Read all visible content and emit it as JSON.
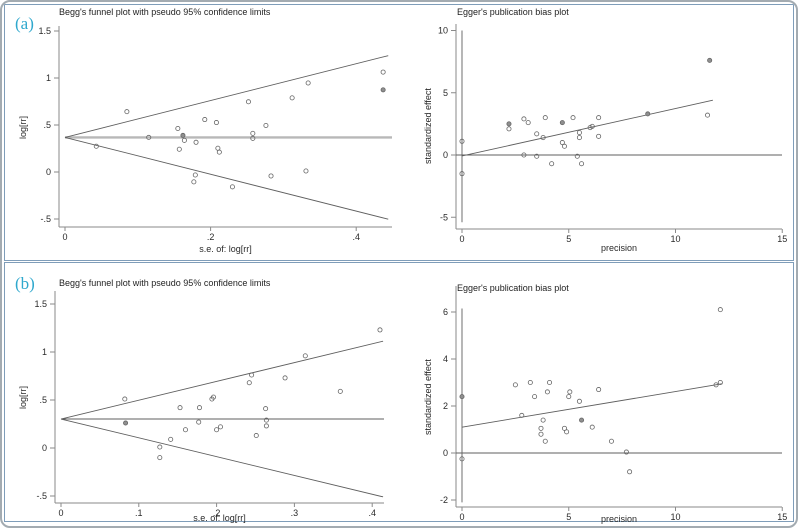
{
  "figure": {
    "panel_a_label": "(a)",
    "panel_b_label": "(b)",
    "accent_color": "#2fa8cd",
    "panel_border_color": "#7f9db9",
    "outer_border_color": "#a3abb1"
  },
  "chart_data": [
    {
      "id": "funnel_a",
      "panel": "a",
      "type": "scatter",
      "title": "Begg's funnel plot with pseudo 95% confidence limits",
      "xlabel": "s.e. of: log[rr]",
      "ylabel": "log[rr]",
      "xlim": [
        0,
        0.46
      ],
      "ylim": [
        -0.6,
        1.6
      ],
      "grid": false,
      "xticks": [
        {
          "v": 0,
          "l": "0"
        },
        {
          "v": 0.2,
          "l": ".2"
        },
        {
          "v": 0.4,
          "l": ".4"
        }
      ],
      "yticks": [
        {
          "v": -0.5,
          "l": "-.5"
        },
        {
          "v": 0,
          "l": "0"
        },
        {
          "v": 0.5,
          "l": ".5"
        },
        {
          "v": 1,
          "l": "1"
        },
        {
          "v": 1.5,
          "l": "1.5"
        }
      ],
      "pooled_effect": 0.368,
      "funnel": {
        "apex_x": 0,
        "apex_y": 0.368,
        "end_x": 0.444,
        "upper_end_y": 1.238,
        "lower_end_y": -0.502
      },
      "points": [
        [
          0.043,
          0.274
        ],
        [
          0.085,
          0.642
        ],
        [
          0.115,
          0.368
        ],
        [
          0.155,
          0.463
        ],
        [
          0.157,
          0.242
        ],
        [
          0.162,
          0.389,
          1
        ],
        [
          0.164,
          0.337
        ],
        [
          0.18,
          0.316
        ],
        [
          0.192,
          0.558
        ],
        [
          0.179,
          -0.032
        ],
        [
          0.177,
          -0.105
        ],
        [
          0.208,
          0.526
        ],
        [
          0.21,
          0.253
        ],
        [
          0.212,
          0.211
        ],
        [
          0.23,
          -0.158
        ],
        [
          0.252,
          0.747
        ],
        [
          0.258,
          0.411
        ],
        [
          0.258,
          0.358
        ],
        [
          0.276,
          0.495
        ],
        [
          0.283,
          -0.042
        ],
        [
          0.312,
          0.789
        ],
        [
          0.331,
          0.011
        ],
        [
          0.334,
          0.947
        ],
        [
          0.437,
          1.063
        ],
        [
          0.437,
          0.874,
          1
        ]
      ]
    },
    {
      "id": "egger_a",
      "panel": "a",
      "type": "scatter",
      "title": "Egger's publication bias plot",
      "xlabel": "precision",
      "ylabel": "standardized effect",
      "xlim": [
        0,
        15
      ],
      "ylim": [
        -5.5,
        10.5
      ],
      "grid": false,
      "xticks": [
        {
          "v": 0,
          "l": "0"
        },
        {
          "v": 5,
          "l": "5"
        },
        {
          "v": 10,
          "l": "10"
        },
        {
          "v": 15,
          "l": "15"
        }
      ],
      "yticks": [
        {
          "v": -5,
          "l": "-5"
        },
        {
          "v": 0,
          "l": "0"
        },
        {
          "v": 5,
          "l": "5"
        },
        {
          "v": 10,
          "l": "10"
        }
      ],
      "zero_href_y": 0,
      "zero_vref_x": 0,
      "vref_span": [
        -5.4,
        10.0
      ],
      "regression": {
        "x1": 0,
        "y1": -0.08,
        "x2": 11.75,
        "y2": 4.4
      },
      "points": [
        [
          0,
          1.1
        ],
        [
          0,
          -1.5
        ],
        [
          2.2,
          2.5,
          1
        ],
        [
          2.2,
          2.1
        ],
        [
          2.9,
          2.9
        ],
        [
          3.1,
          2.6
        ],
        [
          2.9,
          0.0
        ],
        [
          3.5,
          1.7
        ],
        [
          3.5,
          -0.1
        ],
        [
          3.9,
          3.0
        ],
        [
          3.8,
          1.4
        ],
        [
          4.2,
          -0.7
        ],
        [
          4.7,
          2.6,
          1
        ],
        [
          4.7,
          1.0
        ],
        [
          4.8,
          0.7
        ],
        [
          5.2,
          3.0
        ],
        [
          5.5,
          1.8
        ],
        [
          5.5,
          1.4
        ],
        [
          5.4,
          -0.1
        ],
        [
          5.6,
          -0.7
        ],
        [
          6.0,
          2.2
        ],
        [
          6.1,
          2.3
        ],
        [
          6.4,
          3.0
        ],
        [
          6.4,
          1.5
        ],
        [
          8.7,
          3.3,
          1
        ],
        [
          11.6,
          7.6,
          1
        ],
        [
          11.5,
          3.2
        ]
      ]
    },
    {
      "id": "funnel_b",
      "panel": "b",
      "type": "scatter",
      "title": "Begg's funnel plot with pseudo 95% confidence limits",
      "xlabel": "s.e. of: log[rr]",
      "ylabel": "log[rr]",
      "xlim": [
        0,
        0.42
      ],
      "ylim": [
        -0.6,
        1.6
      ],
      "grid": false,
      "xticks": [
        {
          "v": 0,
          "l": "0"
        },
        {
          "v": 0.1,
          "l": ".1"
        },
        {
          "v": 0.2,
          "l": ".2"
        },
        {
          "v": 0.3,
          "l": ".3"
        },
        {
          "v": 0.4,
          "l": ".4"
        }
      ],
      "yticks": [
        {
          "v": -0.5,
          "l": "-.5"
        },
        {
          "v": 0,
          "l": "0"
        },
        {
          "v": 0.5,
          "l": ".5"
        },
        {
          "v": 1,
          "l": "1"
        },
        {
          "v": 1.5,
          "l": "1.5"
        }
      ],
      "pooled_effect": 0.302,
      "funnel": {
        "apex_x": 0,
        "apex_y": 0.302,
        "end_x": 0.414,
        "upper_end_y": 1.113,
        "lower_end_y": -0.509
      },
      "points": [
        [
          0.082,
          0.51
        ],
        [
          0.083,
          0.26,
          1
        ],
        [
          0.127,
          0.01
        ],
        [
          0.127,
          -0.1
        ],
        [
          0.141,
          0.09
        ],
        [
          0.153,
          0.42
        ],
        [
          0.16,
          0.19
        ],
        [
          0.178,
          0.42
        ],
        [
          0.177,
          0.27
        ],
        [
          0.194,
          0.51
        ],
        [
          0.196,
          0.53
        ],
        [
          0.2,
          0.19
        ],
        [
          0.205,
          0.22
        ],
        [
          0.245,
          0.76
        ],
        [
          0.242,
          0.68
        ],
        [
          0.251,
          0.13
        ],
        [
          0.263,
          0.41
        ],
        [
          0.264,
          0.29
        ],
        [
          0.264,
          0.23
        ],
        [
          0.288,
          0.73
        ],
        [
          0.314,
          0.96
        ],
        [
          0.359,
          0.59
        ],
        [
          0.41,
          1.23
        ]
      ]
    },
    {
      "id": "egger_b",
      "panel": "b",
      "type": "scatter",
      "title": "Egger's publication bias plot",
      "xlabel": "precision",
      "ylabel": "standardized effect",
      "xlim": [
        0,
        15
      ],
      "ylim": [
        -2.3,
        6.5
      ],
      "grid": false,
      "xticks": [
        {
          "v": 0,
          "l": "0"
        },
        {
          "v": 5,
          "l": "5"
        },
        {
          "v": 10,
          "l": "10"
        },
        {
          "v": 15,
          "l": "15"
        }
      ],
      "yticks": [
        {
          "v": -2,
          "l": "-2"
        },
        {
          "v": 0,
          "l": "0"
        },
        {
          "v": 2,
          "l": "2"
        },
        {
          "v": 4,
          "l": "4"
        },
        {
          "v": 6,
          "l": "6"
        }
      ],
      "zero_href_y": 0,
      "zero_vref_x": 0,
      "vref_span": [
        -2.1,
        6.15
      ],
      "regression": {
        "x1": 0,
        "y1": 1.1,
        "x2": 12.2,
        "y2": 2.95
      },
      "points": [
        [
          0,
          2.4,
          1
        ],
        [
          0,
          -0.25
        ],
        [
          2.5,
          2.9
        ],
        [
          2.8,
          1.6
        ],
        [
          3.2,
          3.0
        ],
        [
          3.4,
          2.4
        ],
        [
          3.8,
          1.4
        ],
        [
          3.7,
          1.05
        ],
        [
          3.7,
          0.8
        ],
        [
          3.9,
          0.5
        ],
        [
          4.1,
          3.0
        ],
        [
          4.0,
          2.6
        ],
        [
          4.8,
          1.05
        ],
        [
          4.9,
          0.9
        ],
        [
          5.05,
          2.6
        ],
        [
          5.0,
          2.4
        ],
        [
          5.5,
          2.2
        ],
        [
          5.6,
          1.4,
          1
        ],
        [
          6.1,
          1.1
        ],
        [
          6.4,
          2.7
        ],
        [
          7.0,
          0.5
        ],
        [
          7.7,
          0.04
        ],
        [
          7.85,
          -0.8
        ],
        [
          11.9,
          2.9
        ],
        [
          12.1,
          3.0
        ],
        [
          12.1,
          6.1
        ]
      ]
    }
  ]
}
